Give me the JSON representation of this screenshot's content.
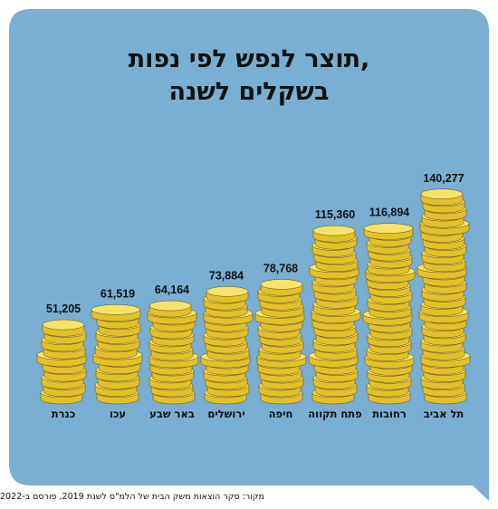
{
  "title_lines": [
    "תוצר לנפש לפי נפות,",
    "בשקלים לשנה"
  ],
  "source": "מקור: סקר הוצאות משק הבית של הלמ\"ס לשנת 2019, פורסם ב-2022",
  "colors": {
    "panel": "#7aaed3",
    "coin_fill": "#f7e26b",
    "coin_edge": "#e3c02a",
    "coin_outline": "#5a4a10",
    "text": "#111111"
  },
  "chart_data": {
    "type": "bar",
    "style": "coin-stacks",
    "categories": [
      "כנרת",
      "עכו",
      "באר שבע",
      "ירושלים",
      "חיפה",
      "פתח תקווה",
      "רחובות",
      "תל אביב"
    ],
    "values": [
      51205,
      61519,
      64164,
      73884,
      78768,
      115360,
      116894,
      140277
    ],
    "value_labels": [
      "51,205",
      "61,519",
      "64,164",
      "73,884",
      "78,768",
      "115,360",
      "116,894",
      "140,277"
    ],
    "xlabel": "",
    "ylabel": "",
    "grid": false,
    "legend": "none"
  }
}
